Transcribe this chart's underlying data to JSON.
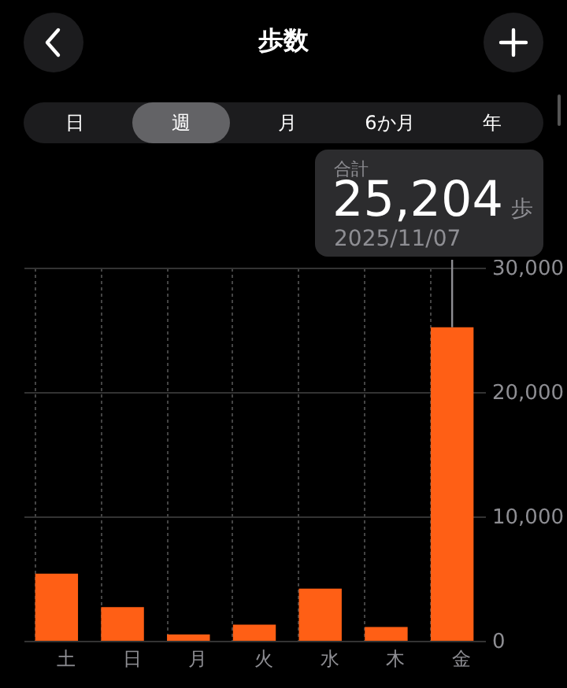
{
  "chart_data": {
    "type": "bar",
    "title": "歩数",
    "categories": [
      "土",
      "日",
      "月",
      "火",
      "水",
      "木",
      "金"
    ],
    "values": [
      5400,
      2700,
      500,
      1300,
      4200,
      1100,
      25204
    ],
    "color": "#ff5f15",
    "ylim": [
      0,
      30000
    ],
    "yticks": [
      {
        "value": 0,
        "label": "0"
      },
      {
        "value": 10000,
        "label": "10,000"
      },
      {
        "value": 20000,
        "label": "20,000"
      },
      {
        "value": 30000,
        "label": "30,000"
      }
    ],
    "grid": true,
    "annotations": [
      "日",
      "週",
      "月",
      "6か月",
      "年",
      "合計",
      {
        "text": "25,204",
        "x": "金",
        "y": 25204
      },
      "歩",
      "2025/11/07"
    ]
  }
}
